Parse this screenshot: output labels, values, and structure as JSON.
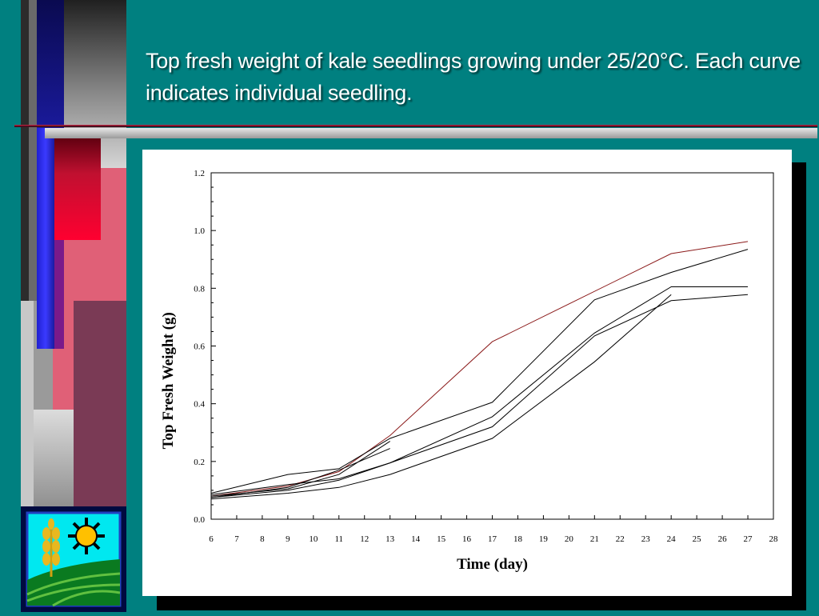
{
  "slide": {
    "title": "Top fresh weight of kale seedlings growing under 25/20°C. Each curve indicates individual seedling."
  },
  "colors": {
    "background": "#008080",
    "red_series": "#8b1a1a",
    "black_series": "#000000"
  },
  "logo": {
    "icons": [
      "wheat-icon",
      "sun-icon",
      "field-icon"
    ]
  },
  "chart_data": {
    "type": "line",
    "title": "",
    "xlabel": "Time (day)",
    "ylabel": "Top Fresh Weight (g)",
    "xlim": [
      6,
      28
    ],
    "ylim": [
      0,
      1.2
    ],
    "x_ticks": [
      "6",
      "7",
      "8",
      "9",
      "10",
      "11",
      "12",
      "13",
      "14",
      "15",
      "16",
      "17",
      "18",
      "19",
      "20",
      "21",
      "22",
      "23",
      "24",
      "25",
      "26",
      "27",
      "28"
    ],
    "y_ticks": [
      "0.0",
      "0.2",
      "0.4",
      "0.6",
      "0.8",
      "1.0",
      "1.2"
    ],
    "grid": false,
    "legend": "none",
    "series": [
      {
        "color": "#8b1a1a",
        "points": [
          [
            6,
            0.08
          ],
          [
            9,
            0.115
          ],
          [
            11,
            0.165
          ],
          [
            13,
            0.29
          ],
          [
            17,
            0.615
          ],
          [
            24,
            0.92
          ],
          [
            27,
            0.962
          ]
        ]
      },
      {
        "color": "#000000",
        "points": [
          [
            6,
            0.09
          ],
          [
            9,
            0.155
          ],
          [
            11,
            0.175
          ],
          [
            13,
            0.28
          ],
          [
            17,
            0.405
          ],
          [
            21,
            0.76
          ],
          [
            24,
            0.855
          ],
          [
            27,
            0.935
          ]
        ]
      },
      {
        "color": "#000000",
        "points": [
          [
            6,
            0.085
          ],
          [
            9,
            0.12
          ],
          [
            11,
            0.14
          ],
          [
            13,
            0.195
          ],
          [
            17,
            0.355
          ],
          [
            21,
            0.645
          ],
          [
            24,
            0.805
          ],
          [
            27,
            0.805
          ]
        ]
      },
      {
        "color": "#000000",
        "points": [
          [
            6,
            0.075
          ],
          [
            9,
            0.1
          ],
          [
            11,
            0.135
          ],
          [
            13,
            0.195
          ],
          [
            17,
            0.32
          ],
          [
            21,
            0.635
          ],
          [
            24,
            0.757
          ],
          [
            27,
            0.778
          ]
        ]
      },
      {
        "color": "#000000",
        "points": [
          [
            6,
            0.07
          ],
          [
            9,
            0.09
          ],
          [
            11,
            0.11
          ],
          [
            13,
            0.155
          ],
          [
            17,
            0.28
          ],
          [
            21,
            0.545
          ],
          [
            24,
            0.778
          ]
        ]
      },
      {
        "color": "#000000",
        "points": [
          [
            6,
            0.08
          ],
          [
            9,
            0.105
          ],
          [
            11,
            0.155
          ],
          [
            13,
            0.27
          ]
        ]
      },
      {
        "color": "#000000",
        "points": [
          [
            6,
            0.075
          ],
          [
            9,
            0.11
          ],
          [
            11,
            0.17
          ],
          [
            13,
            0.245
          ]
        ]
      }
    ]
  }
}
